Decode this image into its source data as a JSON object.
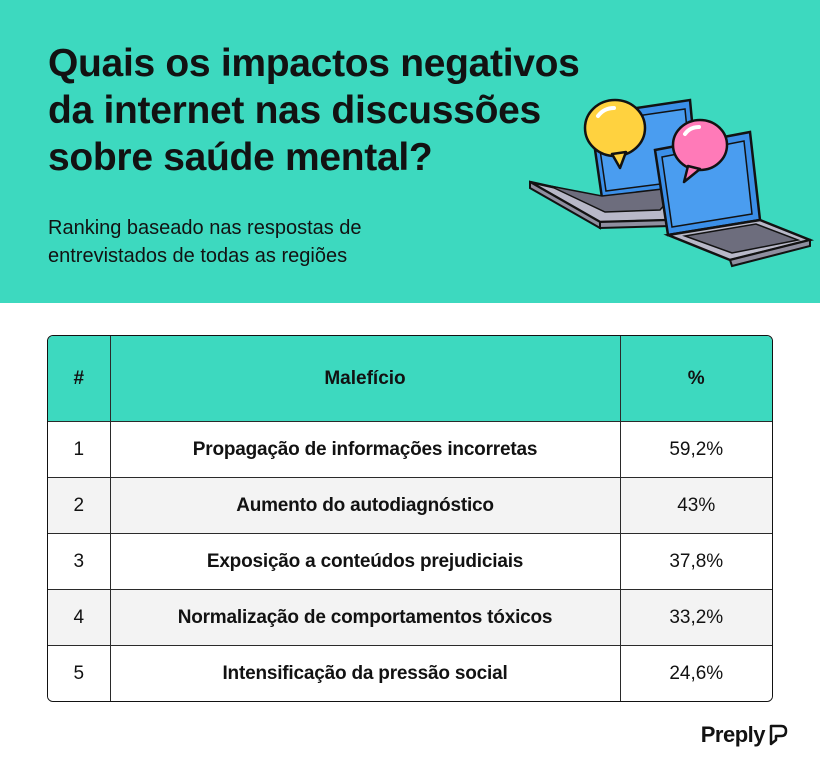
{
  "header": {
    "title_lines": [
      "Quais os impactos negativos",
      "da internet nas discussões",
      "sobre saúde mental?"
    ],
    "subtitle_lines": [
      "Ranking baseado nas respostas de",
      "entrevistados de todas as regiões"
    ],
    "illustration": {
      "icons": [
        "laptop-icon",
        "laptop-icon",
        "speech-bubble-icon",
        "speech-bubble-icon"
      ],
      "colors": {
        "bubble_yellow": "#ffd23f",
        "bubble_pink": "#ff7ab8",
        "screen": "#3b8fe8",
        "body": "#b8b8c8"
      }
    }
  },
  "table": {
    "headers": [
      "#",
      "Malefício",
      "%"
    ],
    "rows": [
      {
        "rank": "1",
        "item": "Propagação de informações incorretas",
        "percent": "59,2%"
      },
      {
        "rank": "2",
        "item": "Aumento do autodiagnóstico",
        "percent": "43%"
      },
      {
        "rank": "3",
        "item": "Exposição a conteúdos prejudiciais",
        "percent": "37,8%"
      },
      {
        "rank": "4",
        "item": "Normalização de comportamentos tóxicos",
        "percent": "33,2%"
      },
      {
        "rank": "5",
        "item": "Intensificação da pressão social",
        "percent": "24,6%"
      }
    ]
  },
  "brand": {
    "name": "Preply",
    "icon": "preply-logo-icon"
  },
  "colors": {
    "accent": "#3dd9bf",
    "text": "#121212",
    "row_alt": "#f3f3f3"
  }
}
